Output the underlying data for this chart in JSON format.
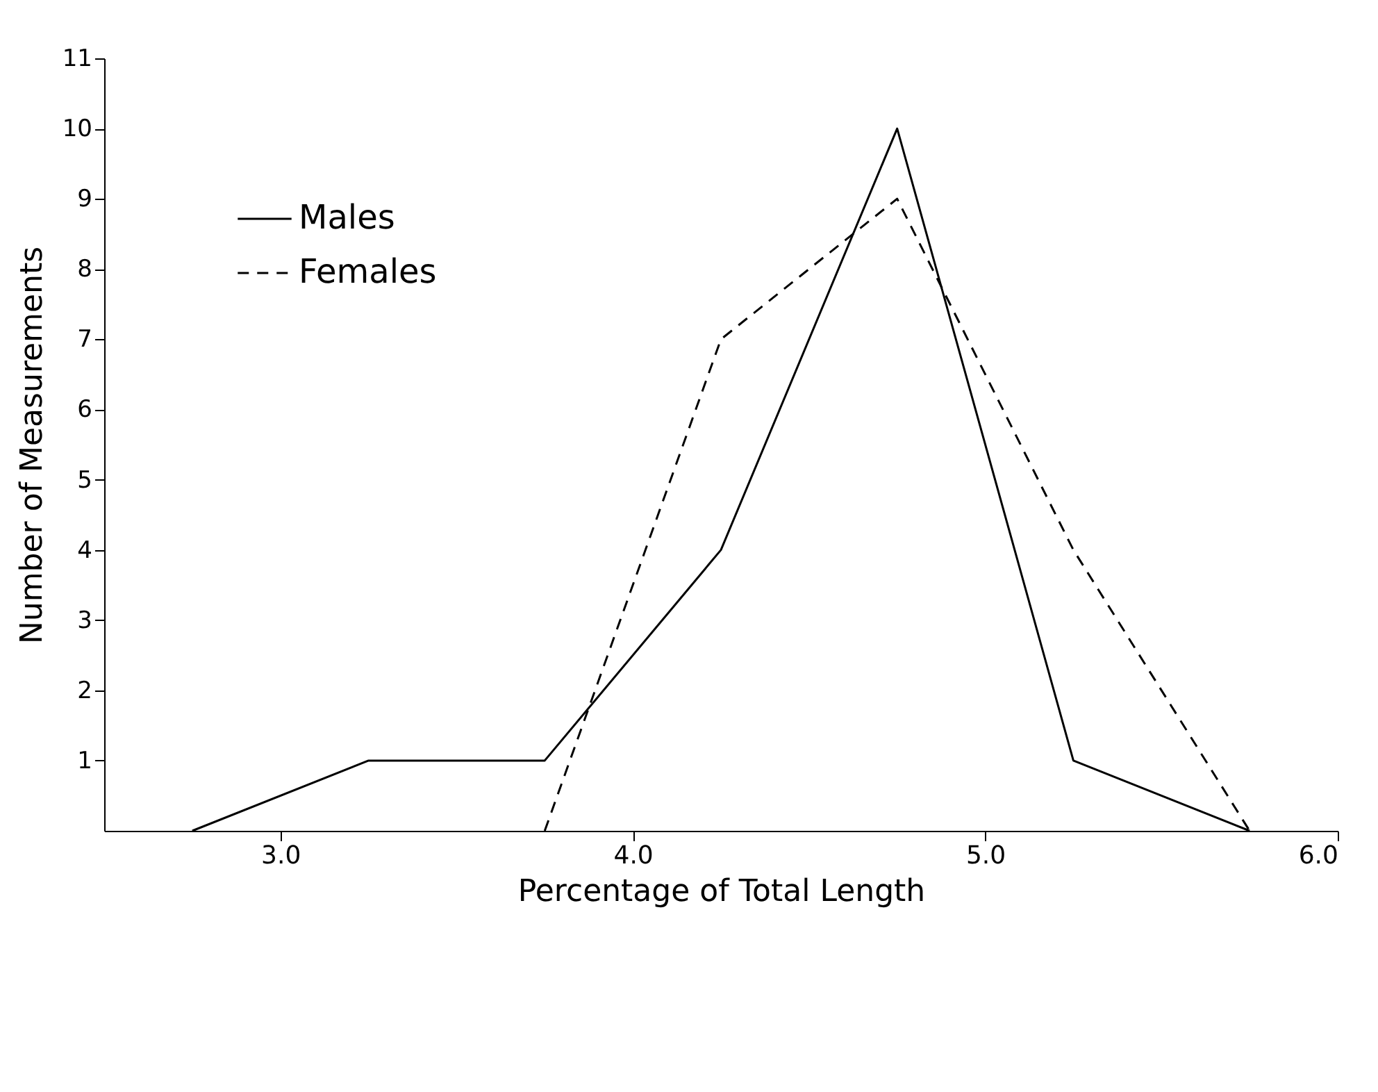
{
  "chart_data": {
    "type": "line",
    "xlabel": "Percentage of Total Length",
    "ylabel": "Number of Measurements",
    "series": [
      {
        "name": "Males",
        "color": "#000000",
        "line_style": "solid",
        "x": [
          2.75,
          3.25,
          3.75,
          4.25,
          4.75,
          5.25,
          5.75
        ],
        "values": [
          0,
          1,
          1,
          4,
          10,
          1,
          0
        ]
      },
      {
        "name": "Females",
        "color": "#000000",
        "line_style": "dashed",
        "x": [
          3.75,
          4.25,
          4.75,
          5.25,
          5.75
        ],
        "values": [
          0,
          7,
          9,
          4,
          0
        ]
      }
    ],
    "xlim": [
      2.5,
      6.0
    ],
    "ylim": [
      0,
      11
    ],
    "xticks": [
      {
        "value": 3,
        "label": "3.0"
      },
      {
        "value": 4,
        "label": "4.0"
      },
      {
        "value": 5,
        "label": "5.0"
      },
      {
        "value": 6,
        "label": "6.0"
      }
    ],
    "yticks": [
      1,
      2,
      3,
      4,
      5,
      6,
      7,
      8,
      9,
      10,
      11
    ],
    "grid": false,
    "legend": "top left",
    "marker": "none"
  }
}
